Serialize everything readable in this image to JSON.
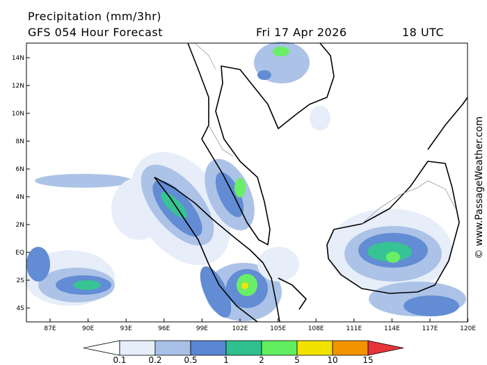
{
  "header": {
    "title": "Precipitation (mm/3hr)",
    "forecast": "GFS 054 Hour Forecast",
    "date": "Fri 17 Apr 2026",
    "time": "18 UTC"
  },
  "watermark": "© www.PassageWeather.com",
  "lat_labels": [
    "14N",
    "12N",
    "10N",
    "8N",
    "6N",
    "4N",
    "2N",
    "EQ",
    "2S",
    "4S"
  ],
  "lon_labels": [
    "87E",
    "90E",
    "93E",
    "96E",
    "99E",
    "102E",
    "105E",
    "108E",
    "111E",
    "114E",
    "117E",
    "120E"
  ],
  "colorbar": {
    "levels": [
      0.1,
      0.2,
      0.5,
      1,
      2,
      5,
      10,
      15
    ],
    "colors": [
      "#ffffff",
      "#e6eef9",
      "#a8c0e6",
      "#5a86d2",
      "#2ec08f",
      "#60ef5e",
      "#f2e200",
      "#f39300",
      "#e8333a"
    ]
  }
}
